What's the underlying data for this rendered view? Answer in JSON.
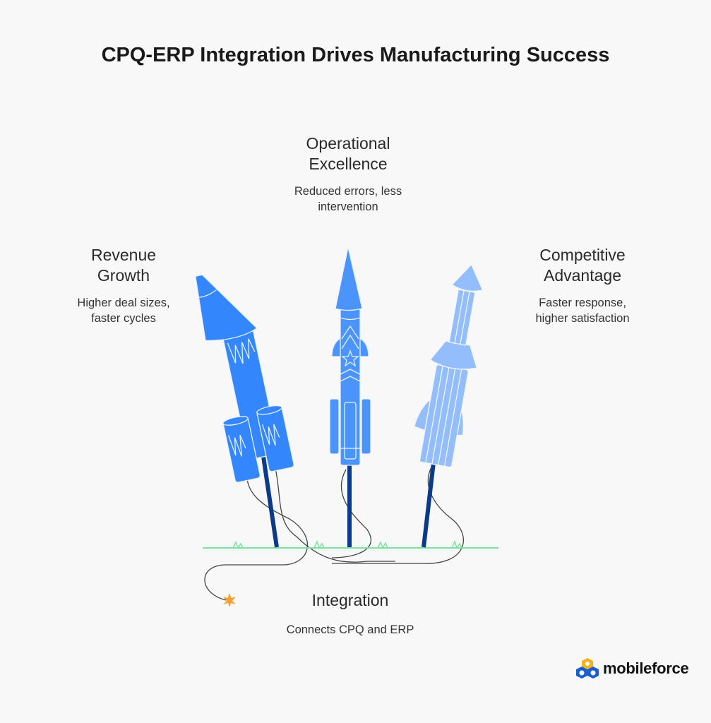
{
  "title": "CPQ-ERP Integration Drives Manufacturing Success",
  "items": [
    {
      "heading": "Operational\nExcellence",
      "heading_l1": "Operational",
      "heading_l2": "Excellence",
      "desc_l1": "Reduced errors, less",
      "desc_l2": "intervention"
    },
    {
      "heading_l1": "Revenue",
      "heading_l2": "Growth",
      "desc_l1": "Higher deal sizes,",
      "desc_l2": "faster cycles"
    },
    {
      "heading_l1": "Competitive",
      "heading_l2": "Advantage",
      "desc_l1": "Faster response,",
      "desc_l2": "higher satisfaction"
    },
    {
      "heading_l1": "Integration",
      "desc_l1": "Connects CPQ and ERP"
    }
  ],
  "logo": {
    "text": "mobileforce"
  },
  "colors": {
    "rocket_dark": "#3486fc",
    "rocket_mid": "#4b94fb",
    "rocket_light": "#93bdfb",
    "stick": "#0b3a8a",
    "grass": "#7ee0a0",
    "spark": "#f5a030"
  }
}
